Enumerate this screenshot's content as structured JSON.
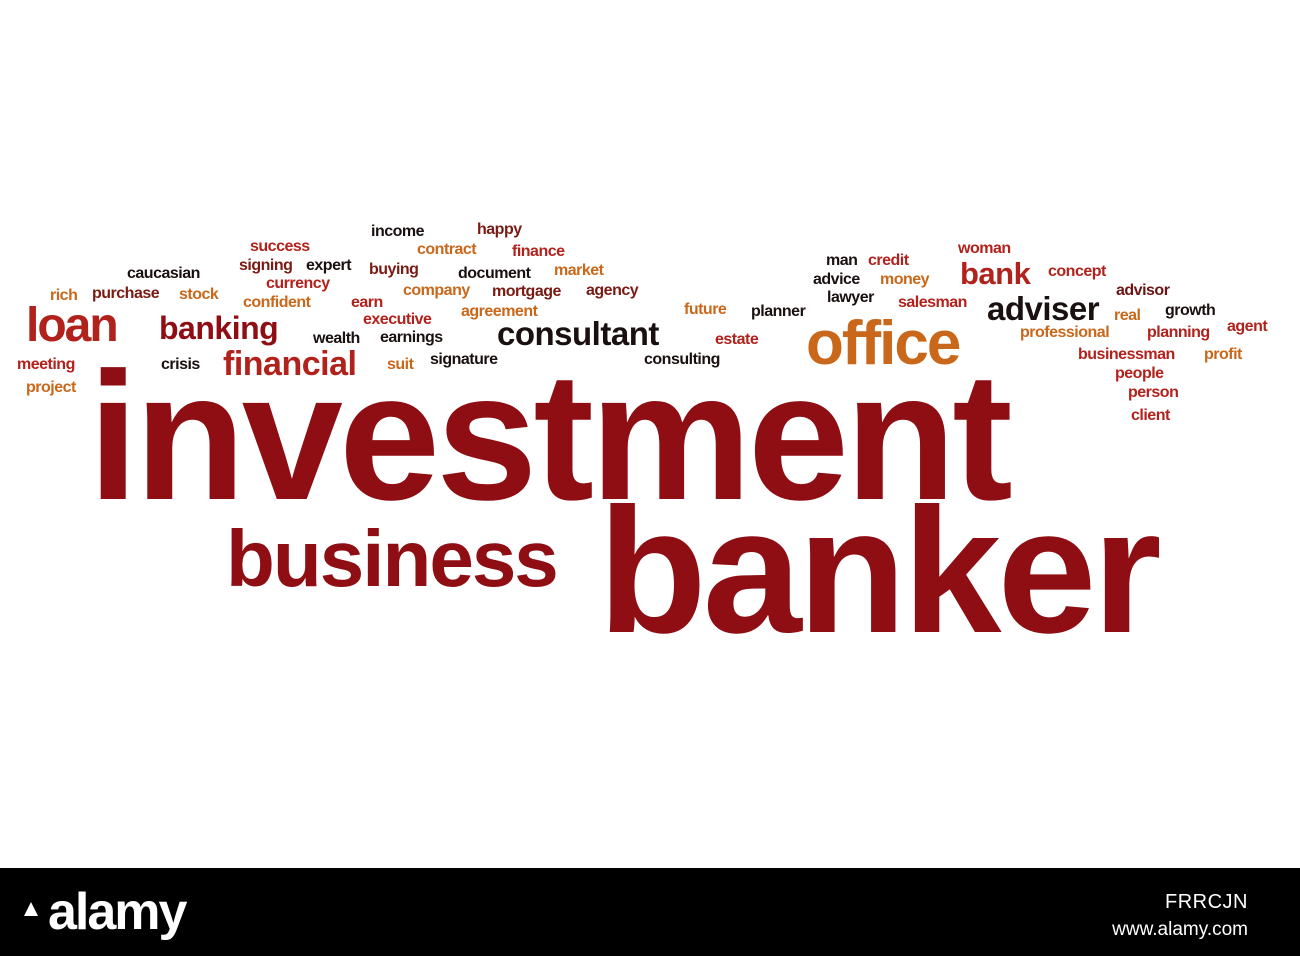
{
  "words": {
    "investment": "investment",
    "banker": "banker",
    "business": "business",
    "office": "office",
    "loan": "loan",
    "consultant": "consultant",
    "financial": "financial",
    "banking": "banking",
    "adviser": "adviser",
    "bank": "bank",
    "income": "income",
    "happy": "happy",
    "success": "success",
    "contract": "contract",
    "finance": "finance",
    "caucasian": "caucasian",
    "signing": "signing",
    "expert": "expert",
    "buying": "buying",
    "document": "document",
    "market": "market",
    "rich": "rich",
    "purchase": "purchase",
    "stock": "stock",
    "currency": "currency",
    "company": "company",
    "mortgage": "mortgage",
    "agency": "agency",
    "confident": "confident",
    "earn": "earn",
    "agreement": "agreement",
    "future": "future",
    "executive": "executive",
    "wealth": "wealth",
    "earnings": "earnings",
    "estate": "estate",
    "meeting": "meeting",
    "crisis": "crisis",
    "suit": "suit",
    "signature": "signature",
    "consulting": "consulting",
    "project": "project",
    "man": "man",
    "credit": "credit",
    "woman": "woman",
    "advice": "advice",
    "money": "money",
    "concept": "concept",
    "lawyer": "lawyer",
    "salesman": "salesman",
    "advisor": "advisor",
    "planner": "planner",
    "growth": "growth",
    "real": "real",
    "professional": "professional",
    "planning": "planning",
    "agent": "agent",
    "businessman": "businessman",
    "profit": "profit",
    "people": "people",
    "person": "person",
    "client": "client"
  },
  "footer": {
    "logo": "alamy",
    "image_id": "FRRCJN",
    "url": "www.alamy.com"
  },
  "colors": {
    "dark_red": "#8f0e14",
    "red": "#b2221c",
    "orange": "#c9681b",
    "brown": "#7a1a12",
    "black": "#1a1010",
    "footer_bg": "#000000"
  }
}
